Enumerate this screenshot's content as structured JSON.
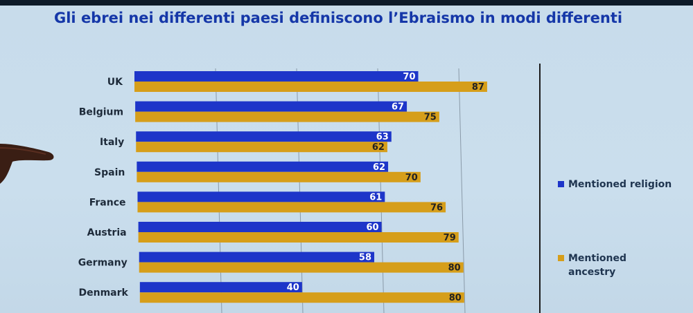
{
  "title": "Gli ebrei nei differenti paesi definiscono l’Ebraismo in modi differenti",
  "legend": [
    {
      "label": "Mentioned religion",
      "color": "#1d35c9"
    },
    {
      "label": "Mentioned\nancestry",
      "color": "#d69e1a"
    }
  ],
  "chart_data": {
    "type": "bar",
    "orientation": "horizontal",
    "title": "Gli ebrei nei differenti paesi definiscono l’Ebraismo in modi differenti",
    "categories": [
      "UK",
      "Belgium",
      "Italy",
      "Spain",
      "France",
      "Austria",
      "Germany",
      "Denmark"
    ],
    "series": [
      {
        "name": "Mentioned religion",
        "color": "#1d35c9",
        "values": [
          70,
          67,
          63,
          62,
          61,
          60,
          58,
          40
        ]
      },
      {
        "name": "Mentioned ancestry",
        "color": "#d69e1a",
        "values": [
          87,
          75,
          62,
          70,
          76,
          79,
          80,
          80
        ]
      }
    ],
    "xlim": [
      0,
      100
    ],
    "grid": true,
    "legend_position": "right"
  }
}
